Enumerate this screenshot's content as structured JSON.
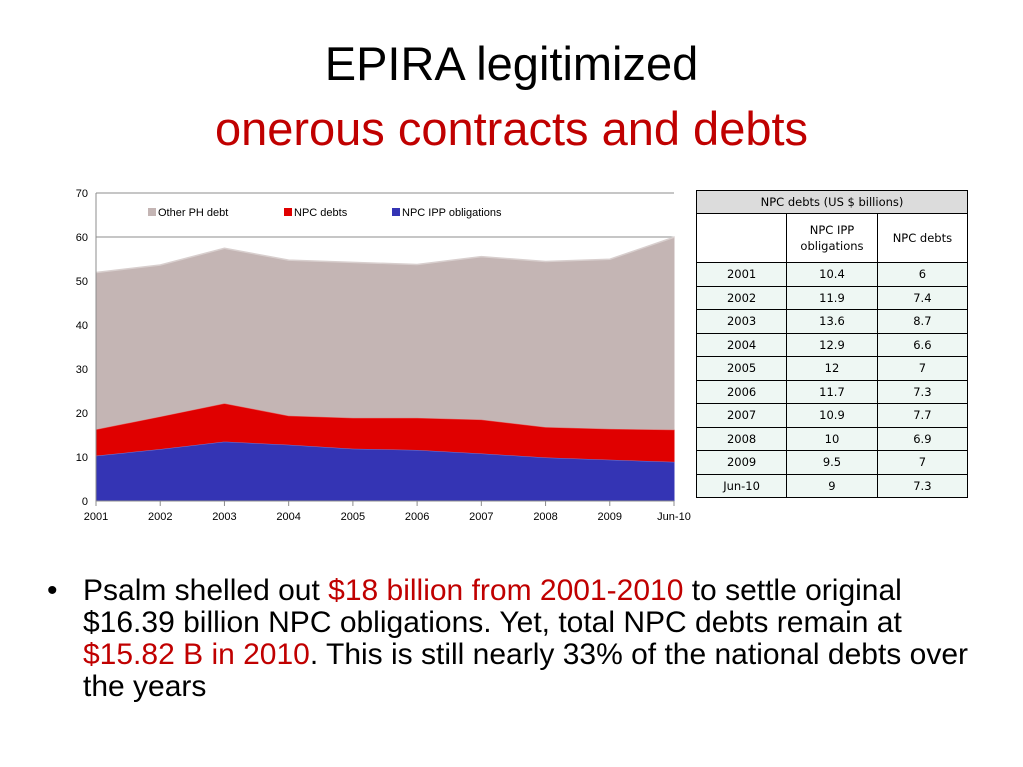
{
  "slide": {
    "title_line1": "EPIRA legitimized",
    "title_line2": "onerous contracts and debts",
    "title_line2_color": "#c00000",
    "bullet": {
      "symbol": "•",
      "p1": "Psalm shelled out ",
      "h1": "$18 billion from 2001-2010",
      "p2": " to settle original $16.39 billion NPC obligations. Yet, total NPC debts remain at ",
      "h2": "$15.82 B in 2010",
      "p3": ". This is still nearly 33% of the national debts over the years",
      "highlight_color": "#c00000"
    }
  },
  "chart_data": {
    "type": "area",
    "stacked": true,
    "categories": [
      "2001",
      "2002",
      "2003",
      "2004",
      "2005",
      "2006",
      "2007",
      "2008",
      "2009",
      "Jun-10"
    ],
    "ylim": [
      0,
      70
    ],
    "yticks": [
      0,
      10,
      20,
      30,
      40,
      50,
      60,
      70
    ],
    "grid": true,
    "legend_position": "top",
    "series": [
      {
        "name": "Other PH debt",
        "color": "#c4b5b4",
        "values": [
          35.6,
          34.4,
          35.2,
          35.3,
          35.3,
          34.8,
          37.0,
          37.6,
          38.5,
          43.7
        ]
      },
      {
        "name": "NPC debts",
        "color": "#e00000",
        "values": [
          6,
          7.4,
          8.7,
          6.6,
          7,
          7.3,
          7.7,
          6.9,
          7,
          7.3
        ]
      },
      {
        "name": "NPC IPP obligations",
        "color": "#3434b4",
        "values": [
          10.4,
          11.9,
          13.6,
          12.9,
          12,
          11.7,
          10.9,
          10,
          9.5,
          9
        ]
      }
    ],
    "legend_order": [
      "Other PH debt",
      "NPC debts",
      "NPC IPP obligations"
    ],
    "stack_order": [
      "NPC IPP obligations",
      "NPC debts",
      "Other PH debt"
    ]
  },
  "table": {
    "caption": "NPC debts (US $ billions)",
    "headers": [
      "",
      "NPC IPP obligations",
      "NPC debts"
    ],
    "rows": [
      [
        "2001",
        "10.4",
        "6"
      ],
      [
        "2002",
        "11.9",
        "7.4"
      ],
      [
        "2003",
        "13.6",
        "8.7"
      ],
      [
        "2004",
        "12.9",
        "6.6"
      ],
      [
        "2005",
        "12",
        "7"
      ],
      [
        "2006",
        "11.7",
        "7.3"
      ],
      [
        "2007",
        "10.9",
        "7.7"
      ],
      [
        "2008",
        "10",
        "6.9"
      ],
      [
        "2009",
        "9.5",
        "7"
      ],
      [
        "Jun-10",
        "9",
        "7.3"
      ]
    ]
  }
}
